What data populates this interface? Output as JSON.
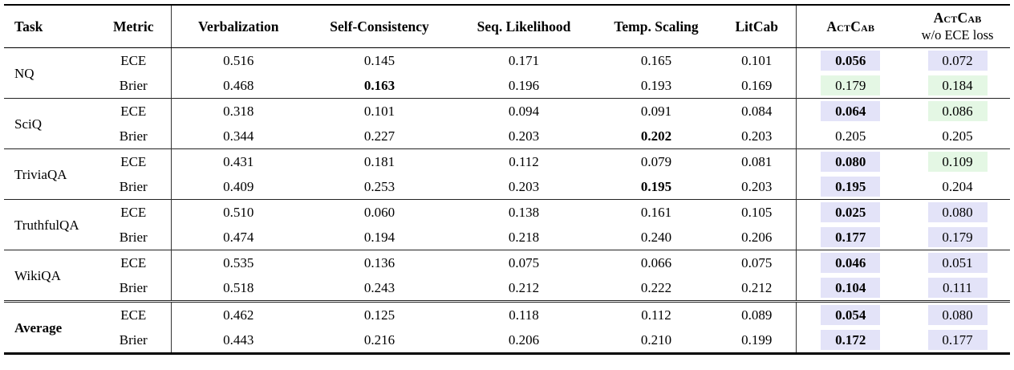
{
  "table": {
    "headers": {
      "task": "Task",
      "metric": "Metric",
      "methods": [
        "Verbalization",
        "Self-Consistency",
        "Seq. Likelihood",
        "Temp. Scaling",
        "LitCab"
      ],
      "actcab": "ActCab",
      "actcab_wo_line1": "ActCab",
      "actcab_wo_line2": "w/o ECE loss"
    },
    "highlight_colors": {
      "purple": "#e3e3f8",
      "green": "#e4f7e4"
    },
    "groups": [
      {
        "task": "NQ",
        "bold_task": false,
        "rows": [
          {
            "metric": "ECE",
            "cells": [
              {
                "v": "0.516"
              },
              {
                "v": "0.145"
              },
              {
                "v": "0.171"
              },
              {
                "v": "0.165"
              },
              {
                "v": "0.101"
              },
              {
                "v": "0.056",
                "b": true,
                "h": "purple"
              },
              {
                "v": "0.072",
                "h": "purple"
              }
            ]
          },
          {
            "metric": "Brier",
            "cells": [
              {
                "v": "0.468"
              },
              {
                "v": "0.163",
                "b": true
              },
              {
                "v": "0.196"
              },
              {
                "v": "0.193"
              },
              {
                "v": "0.169"
              },
              {
                "v": "0.179",
                "h": "green"
              },
              {
                "v": "0.184",
                "h": "green"
              }
            ]
          }
        ]
      },
      {
        "task": "SciQ",
        "bold_task": false,
        "rows": [
          {
            "metric": "ECE",
            "cells": [
              {
                "v": "0.318"
              },
              {
                "v": "0.101"
              },
              {
                "v": "0.094"
              },
              {
                "v": "0.091"
              },
              {
                "v": "0.084"
              },
              {
                "v": "0.064",
                "b": true,
                "h": "purple"
              },
              {
                "v": "0.086",
                "h": "green"
              }
            ]
          },
          {
            "metric": "Brier",
            "cells": [
              {
                "v": "0.344"
              },
              {
                "v": "0.227"
              },
              {
                "v": "0.203"
              },
              {
                "v": "0.202",
                "b": true
              },
              {
                "v": "0.203"
              },
              {
                "v": "0.205"
              },
              {
                "v": "0.205"
              }
            ]
          }
        ]
      },
      {
        "task": "TriviaQA",
        "bold_task": false,
        "rows": [
          {
            "metric": "ECE",
            "cells": [
              {
                "v": "0.431"
              },
              {
                "v": "0.181"
              },
              {
                "v": "0.112"
              },
              {
                "v": "0.079"
              },
              {
                "v": "0.081"
              },
              {
                "v": "0.080",
                "b": true,
                "h": "purple"
              },
              {
                "v": "0.109",
                "h": "green"
              }
            ]
          },
          {
            "metric": "Brier",
            "cells": [
              {
                "v": "0.409"
              },
              {
                "v": "0.253"
              },
              {
                "v": "0.203"
              },
              {
                "v": "0.195",
                "b": true
              },
              {
                "v": "0.203"
              },
              {
                "v": "0.195",
                "b": true,
                "h": "purple"
              },
              {
                "v": "0.204"
              }
            ]
          }
        ]
      },
      {
        "task": "TruthfulQA",
        "bold_task": false,
        "rows": [
          {
            "metric": "ECE",
            "cells": [
              {
                "v": "0.510"
              },
              {
                "v": "0.060"
              },
              {
                "v": "0.138"
              },
              {
                "v": "0.161"
              },
              {
                "v": "0.105"
              },
              {
                "v": "0.025",
                "b": true,
                "h": "purple"
              },
              {
                "v": "0.080",
                "h": "purple"
              }
            ]
          },
          {
            "metric": "Brier",
            "cells": [
              {
                "v": "0.474"
              },
              {
                "v": "0.194"
              },
              {
                "v": "0.218"
              },
              {
                "v": "0.240"
              },
              {
                "v": "0.206"
              },
              {
                "v": "0.177",
                "b": true,
                "h": "purple"
              },
              {
                "v": "0.179",
                "h": "purple"
              }
            ]
          }
        ]
      },
      {
        "task": "WikiQA",
        "bold_task": false,
        "rows": [
          {
            "metric": "ECE",
            "cells": [
              {
                "v": "0.535"
              },
              {
                "v": "0.136"
              },
              {
                "v": "0.075"
              },
              {
                "v": "0.066"
              },
              {
                "v": "0.075"
              },
              {
                "v": "0.046",
                "b": true,
                "h": "purple"
              },
              {
                "v": "0.051",
                "h": "purple"
              }
            ]
          },
          {
            "metric": "Brier",
            "cells": [
              {
                "v": "0.518"
              },
              {
                "v": "0.243"
              },
              {
                "v": "0.212"
              },
              {
                "v": "0.222"
              },
              {
                "v": "0.212"
              },
              {
                "v": "0.104",
                "b": true,
                "h": "purple"
              },
              {
                "v": "0.111",
                "h": "purple"
              }
            ]
          }
        ]
      },
      {
        "task": "Average",
        "bold_task": true,
        "double_rule_before": true,
        "rows": [
          {
            "metric": "ECE",
            "cells": [
              {
                "v": "0.462"
              },
              {
                "v": "0.125"
              },
              {
                "v": "0.118"
              },
              {
                "v": "0.112"
              },
              {
                "v": "0.089"
              },
              {
                "v": "0.054",
                "b": true,
                "h": "purple"
              },
              {
                "v": "0.080",
                "h": "purple"
              }
            ]
          },
          {
            "metric": "Brier",
            "cells": [
              {
                "v": "0.443"
              },
              {
                "v": "0.216"
              },
              {
                "v": "0.206"
              },
              {
                "v": "0.210"
              },
              {
                "v": "0.199"
              },
              {
                "v": "0.172",
                "b": true,
                "h": "purple"
              },
              {
                "v": "0.177",
                "h": "purple"
              }
            ]
          }
        ]
      }
    ]
  }
}
